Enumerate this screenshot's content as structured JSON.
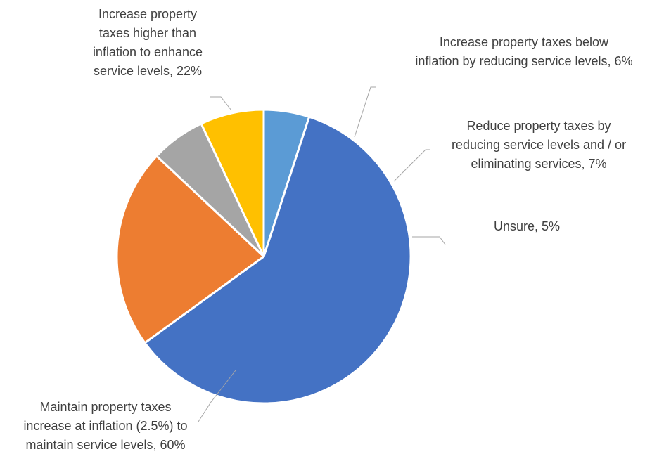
{
  "chart_data": {
    "type": "pie",
    "title": "",
    "start_angle_deg": 90,
    "direction": "clockwise",
    "slices": [
      {
        "label_lines": [
          "Unsure, 5%"
        ],
        "value": 5,
        "color": "#5B9BD5"
      },
      {
        "label_lines": [
          "Maintain property taxes",
          "increase at inflation (2.5%) to",
          "maintain service levels, 60%"
        ],
        "value": 60,
        "color": "#4472C4"
      },
      {
        "label_lines": [
          "Increase property",
          "taxes higher than",
          "inflation to enhance",
          "service levels, 22%"
        ],
        "value": 22,
        "color": "#ED7D31"
      },
      {
        "label_lines": [
          "Increase property taxes below",
          "inflation by reducing service levels, 6%"
        ],
        "value": 6,
        "color": "#A5A5A5"
      },
      {
        "label_lines": [
          "Reduce property taxes by",
          "reducing service levels and / or",
          "eliminating services, 7%"
        ],
        "value": 7,
        "color": "#FFC000"
      }
    ]
  }
}
